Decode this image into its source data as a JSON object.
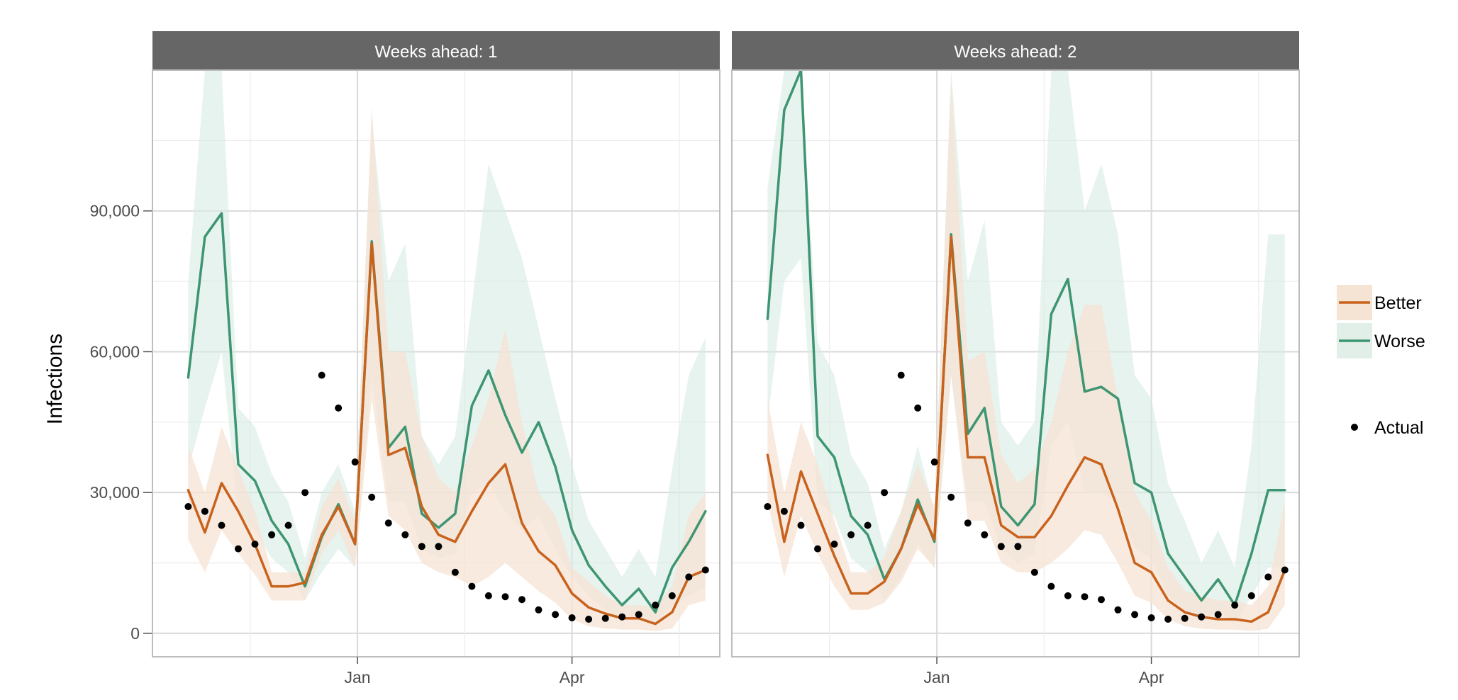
{
  "chart_data": {
    "type": "line",
    "ylabel": "Infections",
    "xlabel": "",
    "ylim": [
      -5000,
      120000
    ],
    "x_range": [
      "2016-10-07",
      "2017-06-02"
    ],
    "y_ticks": [
      0,
      30000,
      60000,
      90000
    ],
    "y_tick_labels": [
      "0",
      "30,000",
      "60,000",
      "90,000"
    ],
    "x_ticks": [
      "2017-01-01",
      "2017-04-01"
    ],
    "x_tick_labels": [
      "Jan",
      "Apr"
    ],
    "grid": true,
    "legend_position": "right",
    "colors": {
      "Better": "#c8621d",
      "Worse": "#3e9572",
      "Actual": "#000000"
    },
    "legend": {
      "better_label": "Better",
      "worse_label": "Worse",
      "actual_label": "Actual"
    },
    "actual": {
      "name": "Actual",
      "x": [
        "2016-10-22",
        "2016-10-29",
        "2016-11-05",
        "2016-11-12",
        "2016-11-19",
        "2016-11-26",
        "2016-12-03",
        "2016-12-10",
        "2016-12-17",
        "2016-12-24",
        "2016-12-31",
        "2017-01-07",
        "2017-01-14",
        "2017-01-21",
        "2017-01-28",
        "2017-02-04",
        "2017-02-11",
        "2017-02-18",
        "2017-02-25",
        "2017-03-04",
        "2017-03-11",
        "2017-03-18",
        "2017-03-25",
        "2017-04-01",
        "2017-04-08",
        "2017-04-15",
        "2017-04-22",
        "2017-04-29",
        "2017-05-06",
        "2017-05-13",
        "2017-05-20",
        "2017-05-27"
      ],
      "y": [
        27000,
        26000,
        23000,
        18000,
        19000,
        21000,
        23000,
        30000,
        55000,
        48000,
        36500,
        29000,
        23500,
        21000,
        18500,
        18500,
        13000,
        10000,
        8000,
        7800,
        7200,
        5000,
        4000,
        3300,
        3000,
        3200,
        3500,
        4000,
        6000,
        8000,
        12000,
        13500
      ]
    },
    "panels": [
      {
        "title": "Weeks ahead: 1",
        "x": [
          "2016-10-22",
          "2016-10-29",
          "2016-11-05",
          "2016-11-12",
          "2016-11-19",
          "2016-11-26",
          "2016-12-03",
          "2016-12-10",
          "2016-12-17",
          "2016-12-24",
          "2016-12-31",
          "2017-01-07",
          "2017-01-14",
          "2017-01-21",
          "2017-01-28",
          "2017-02-04",
          "2017-02-11",
          "2017-02-18",
          "2017-02-25",
          "2017-03-04",
          "2017-03-11",
          "2017-03-18",
          "2017-03-25",
          "2017-04-01",
          "2017-04-08",
          "2017-04-15",
          "2017-04-22",
          "2017-04-29",
          "2017-05-06",
          "2017-05-13",
          "2017-05-20",
          "2017-05-27"
        ],
        "series": [
          {
            "name": "Better",
            "values": [
              30500,
              21500,
              32000,
              26000,
              19000,
              10000,
              10000,
              10800,
              21000,
              27000,
              19000,
              83000,
              38000,
              39500,
              27000,
              21000,
              19500,
              26000,
              32000,
              36000,
              23500,
              17500,
              14500,
              8500,
              5500,
              4200,
              3200,
              3200,
              2000,
              4500,
              12000,
              13500
            ],
            "lower": [
              20000,
              13000,
              22000,
              17000,
              12500,
              7000,
              7000,
              7000,
              17000,
              22000,
              14000,
              50000,
              25000,
              22000,
              15000,
              13000,
              12000,
              10000,
              12000,
              15000,
              12000,
              9000,
              6500,
              3000,
              1500,
              1000,
              800,
              800,
              500,
              1000,
              6000,
              7000
            ],
            "upper": [
              40000,
              30000,
              44000,
              35000,
              26000,
              13000,
              13000,
              13000,
              27000,
              33000,
              24000,
              112000,
              60000,
              60000,
              42000,
              33000,
              30000,
              40000,
              50000,
              65000,
              45000,
              30000,
              25000,
              14000,
              11000,
              8000,
              6000,
              6000,
              5500,
              10000,
              25000,
              30000
            ]
          },
          {
            "name": "Worse",
            "values": [
              54500,
              84500,
              89500,
              36000,
              32500,
              24000,
              19000,
              10000,
              20500,
              27500,
              19000,
              83500,
              39500,
              44000,
              25500,
              22500,
              25500,
              48500,
              56000,
              46500,
              38500,
              45000,
              35500,
              22000,
              14500,
              10000,
              6000,
              9500,
              4500,
              14000,
              19500,
              26000
            ],
            "lower": [
              35000,
              48000,
              60000,
              25000,
              22000,
              16000,
              13000,
              7000,
              13000,
              18000,
              14000,
              55000,
              28000,
              28000,
              18000,
              16000,
              17000,
              30000,
              32000,
              26000,
              22000,
              25000,
              18000,
              12000,
              8000,
              5000,
              3000,
              4000,
              2000,
              6000,
              8000,
              10000
            ],
            "upper": [
              75000,
              120000,
              120000,
              48000,
              44000,
              34000,
              28000,
              16000,
              30000,
              36000,
              26000,
              110000,
              75000,
              83000,
              42000,
              36000,
              42000,
              70000,
              100000,
              90000,
              80000,
              65000,
              50000,
              36000,
              24000,
              18000,
              12000,
              18000,
              12000,
              35000,
              55000,
              63000
            ]
          }
        ]
      },
      {
        "title": "Weeks ahead: 2",
        "x": [
          "2016-10-22",
          "2016-10-29",
          "2016-11-05",
          "2016-11-12",
          "2016-11-19",
          "2016-11-26",
          "2016-12-03",
          "2016-12-10",
          "2016-12-17",
          "2016-12-24",
          "2016-12-31",
          "2017-01-07",
          "2017-01-14",
          "2017-01-21",
          "2017-01-28",
          "2017-02-04",
          "2017-02-11",
          "2017-02-18",
          "2017-02-25",
          "2017-03-04",
          "2017-03-11",
          "2017-03-18",
          "2017-03-25",
          "2017-04-01",
          "2017-04-08",
          "2017-04-15",
          "2017-04-22",
          "2017-04-29",
          "2017-05-06",
          "2017-05-13",
          "2017-05-20",
          "2017-05-27"
        ],
        "series": [
          {
            "name": "Better",
            "values": [
              38000,
              19500,
              34500,
              25500,
              16500,
              8500,
              8500,
              11000,
              18000,
              27500,
              20000,
              84500,
              37500,
              37500,
              23000,
              20500,
              20500,
              25000,
              31500,
              37500,
              36000,
              26500,
              15000,
              13000,
              7000,
              4500,
              3500,
              3000,
              3000,
              2500,
              4500,
              13500
            ],
            "lower": [
              28000,
              12000,
              25000,
              17000,
              10000,
              5000,
              5000,
              6500,
              11000,
              18000,
              14000,
              55000,
              24000,
              24000,
              15000,
              13000,
              13000,
              15000,
              18000,
              22000,
              21000,
              15000,
              8000,
              6500,
              3000,
              1500,
              1000,
              800,
              800,
              500,
              1000,
              6000
            ],
            "upper": [
              50000,
              30000,
              45000,
              36000,
              24000,
              13000,
              13000,
              16000,
              26000,
              36000,
              27000,
              118000,
              58000,
              60000,
              38000,
              32000,
              35000,
              45000,
              60000,
              70000,
              70000,
              50000,
              30000,
              24000,
              14000,
              9000,
              8000,
              7000,
              7000,
              6000,
              10000,
              28000
            ]
          },
          {
            "name": "Worse",
            "values": [
              67000,
              111500,
              120000,
              42000,
              37500,
              25000,
              21000,
              11500,
              18000,
              28500,
              19500,
              85000,
              42500,
              48000,
              27000,
              23000,
              27500,
              68000,
              75500,
              51500,
              52500,
              50000,
              32000,
              30000,
              17000,
              12000,
              7000,
              11500,
              6000,
              17000,
              30500,
              30500
            ],
            "lower": [
              45000,
              75000,
              80000,
              28000,
              25000,
              16000,
              13000,
              7000,
              12000,
              19000,
              14000,
              55000,
              28000,
              28000,
              18000,
              15000,
              17000,
              40000,
              45000,
              30000,
              30000,
              28000,
              18000,
              16000,
              8000,
              5000,
              2500,
              5000,
              2000,
              8000,
              14000,
              14000
            ],
            "upper": [
              95000,
              120000,
              120000,
              62000,
              55000,
              38000,
              32000,
              18000,
              26000,
              40000,
              26000,
              120000,
              75000,
              88000,
              45000,
              40000,
              45000,
              120000,
              120000,
              90000,
              100000,
              85000,
              55000,
              50000,
              32000,
              24000,
              15000,
              22000,
              14000,
              40000,
              85000,
              85000
            ]
          }
        ]
      }
    ]
  }
}
